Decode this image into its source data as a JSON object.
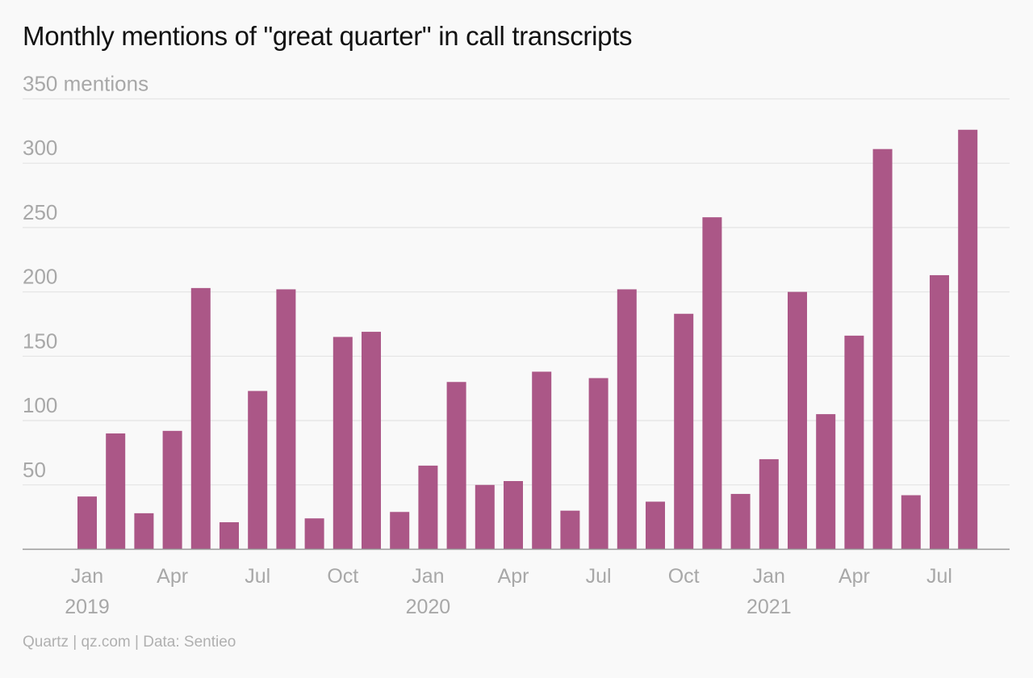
{
  "source": "Quartz | qz.com | Data: Sentieo",
  "chart_data": {
    "type": "bar",
    "title": "Monthly mentions of \"great quarter\" in call transcripts",
    "y_unit_label": "350 mentions",
    "color": "#ab5787",
    "ylim": [
      0,
      350
    ],
    "yticks": [
      "350 mentions",
      "300",
      "250",
      "200",
      "150",
      "100",
      "50"
    ],
    "ytick_values": [
      350,
      300,
      250,
      200,
      150,
      100,
      50
    ],
    "grid": true,
    "x_tick_labels": [
      {
        "index": 0,
        "label": "Jan",
        "year": "2019"
      },
      {
        "index": 3,
        "label": "Apr"
      },
      {
        "index": 6,
        "label": "Jul"
      },
      {
        "index": 9,
        "label": "Oct"
      },
      {
        "index": 12,
        "label": "Jan",
        "year": "2020"
      },
      {
        "index": 15,
        "label": "Apr"
      },
      {
        "index": 18,
        "label": "Jul"
      },
      {
        "index": 21,
        "label": "Oct"
      },
      {
        "index": 24,
        "label": "Jan",
        "year": "2021"
      },
      {
        "index": 27,
        "label": "Apr"
      },
      {
        "index": 30,
        "label": "Jul"
      }
    ],
    "categories": [
      "2019-01",
      "2019-02",
      "2019-03",
      "2019-04",
      "2019-05",
      "2019-06",
      "2019-07",
      "2019-08",
      "2019-09",
      "2019-10",
      "2019-11",
      "2019-12",
      "2020-01",
      "2020-02",
      "2020-03",
      "2020-04",
      "2020-05",
      "2020-06",
      "2020-07",
      "2020-08",
      "2020-09",
      "2020-10",
      "2020-11",
      "2020-12",
      "2021-01",
      "2021-02",
      "2021-03",
      "2021-04",
      "2021-05",
      "2021-06",
      "2021-07",
      "2021-08"
    ],
    "values": [
      41,
      90,
      28,
      92,
      203,
      21,
      123,
      202,
      24,
      165,
      169,
      29,
      65,
      130,
      50,
      53,
      138,
      30,
      133,
      202,
      37,
      183,
      258,
      43,
      70,
      200,
      105,
      166,
      311,
      42,
      213,
      326
    ]
  }
}
